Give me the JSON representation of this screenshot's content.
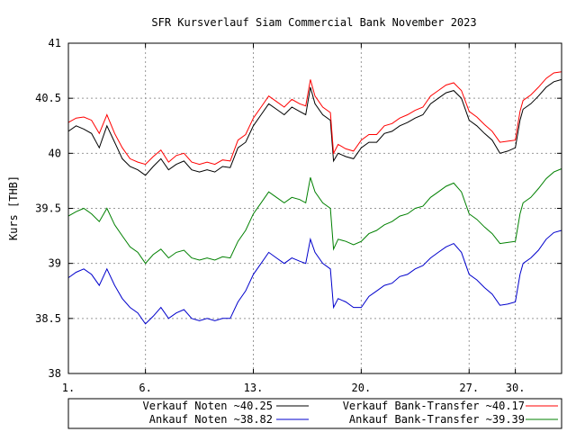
{
  "chart_data": {
    "type": "line",
    "title": "SFR Kursverlauf Siam Commercial Bank November 2023",
    "xlabel": "",
    "ylabel": "Kurs [THB]",
    "xlim": [
      1,
      33
    ],
    "ylim": [
      38,
      41
    ],
    "x_tick_labels": [
      "1.",
      "6.",
      "13.",
      "20.",
      "27.",
      "30."
    ],
    "x_tick_values": [
      1,
      6,
      13,
      20,
      27,
      30
    ],
    "y_tick_labels": [
      "38",
      "38.5",
      "39",
      "39.5",
      "40",
      "40.5",
      "41"
    ],
    "y_tick_values": [
      38,
      38.5,
      39,
      39.5,
      40,
      40.5,
      41
    ],
    "grid": true,
    "legend_position": "bottom",
    "series": [
      {
        "name": "Verkauf Noten",
        "legend_label": "Verkauf Noten ~40.25",
        "color": "#000000",
        "x": [
          1.0,
          1.5,
          2.0,
          2.5,
          3.0,
          3.5,
          4.0,
          4.5,
          5.0,
          5.5,
          6.0,
          6.5,
          7.0,
          7.5,
          8.0,
          8.5,
          9.0,
          9.5,
          10.0,
          10.5,
          11.0,
          11.5,
          12.0,
          12.5,
          13.0,
          13.5,
          14.0,
          14.5,
          15.0,
          15.5,
          16.0,
          16.4,
          16.7,
          17.0,
          17.5,
          18.0,
          18.2,
          18.5,
          19.0,
          19.5,
          20.0,
          20.5,
          21.0,
          21.5,
          22.0,
          22.5,
          23.0,
          23.5,
          24.0,
          24.5,
          25.0,
          25.5,
          26.0,
          26.5,
          27.0,
          27.5,
          28.0,
          28.5,
          29.0,
          29.5,
          30.0,
          30.3,
          30.5,
          31.0,
          31.5,
          32.0,
          32.5,
          33.0
        ],
        "y": [
          40.2,
          40.25,
          40.22,
          40.18,
          40.05,
          40.25,
          40.1,
          39.95,
          39.88,
          39.85,
          39.8,
          39.88,
          39.95,
          39.85,
          39.9,
          39.93,
          39.85,
          39.83,
          39.85,
          39.83,
          39.88,
          39.87,
          40.05,
          40.1,
          40.25,
          40.35,
          40.45,
          40.4,
          40.35,
          40.42,
          40.38,
          40.35,
          40.6,
          40.45,
          40.35,
          40.3,
          39.93,
          40.0,
          39.97,
          39.95,
          40.05,
          40.1,
          40.1,
          40.18,
          40.2,
          40.25,
          40.28,
          40.32,
          40.35,
          40.45,
          40.5,
          40.55,
          40.57,
          40.5,
          40.3,
          40.25,
          40.18,
          40.12,
          40.0,
          40.02,
          40.05,
          40.3,
          40.4,
          40.45,
          40.52,
          40.6,
          40.65,
          40.67
        ]
      },
      {
        "name": "Verkauf Bank-Transfer",
        "legend_label": "Verkauf Bank-Transfer ~40.17",
        "color": "#ff0000",
        "x": [
          1.0,
          1.5,
          2.0,
          2.5,
          3.0,
          3.5,
          4.0,
          4.5,
          5.0,
          5.5,
          6.0,
          6.5,
          7.0,
          7.5,
          8.0,
          8.5,
          9.0,
          9.5,
          10.0,
          10.5,
          11.0,
          11.5,
          12.0,
          12.5,
          13.0,
          13.5,
          14.0,
          14.5,
          15.0,
          15.5,
          16.0,
          16.4,
          16.7,
          17.0,
          17.5,
          18.0,
          18.2,
          18.5,
          19.0,
          19.5,
          20.0,
          20.5,
          21.0,
          21.5,
          22.0,
          22.5,
          23.0,
          23.5,
          24.0,
          24.5,
          25.0,
          25.5,
          26.0,
          26.5,
          27.0,
          27.5,
          28.0,
          28.5,
          29.0,
          29.5,
          30.0,
          30.3,
          30.5,
          31.0,
          31.5,
          32.0,
          32.5,
          33.0
        ],
        "y": [
          40.28,
          40.32,
          40.33,
          40.3,
          40.18,
          40.35,
          40.18,
          40.05,
          39.95,
          39.92,
          39.9,
          39.97,
          40.03,
          39.92,
          39.98,
          40.0,
          39.92,
          39.9,
          39.92,
          39.9,
          39.94,
          39.93,
          40.12,
          40.17,
          40.32,
          40.42,
          40.52,
          40.47,
          40.42,
          40.49,
          40.45,
          40.43,
          40.67,
          40.52,
          40.42,
          40.37,
          40.0,
          40.08,
          40.04,
          40.02,
          40.12,
          40.17,
          40.17,
          40.25,
          40.27,
          40.32,
          40.35,
          40.39,
          40.42,
          40.52,
          40.57,
          40.62,
          40.64,
          40.57,
          40.38,
          40.33,
          40.26,
          40.2,
          40.1,
          40.11,
          40.12,
          40.38,
          40.48,
          40.53,
          40.6,
          40.68,
          40.73,
          40.74
        ]
      },
      {
        "name": "Ankauf Noten",
        "legend_label": "Ankauf  Noten ~38.82",
        "color": "#0000cc",
        "x": [
          1.0,
          1.5,
          2.0,
          2.5,
          3.0,
          3.5,
          4.0,
          4.5,
          5.0,
          5.5,
          6.0,
          6.5,
          7.0,
          7.5,
          8.0,
          8.5,
          9.0,
          9.5,
          10.0,
          10.5,
          11.0,
          11.5,
          12.0,
          12.5,
          13.0,
          13.5,
          14.0,
          14.5,
          15.0,
          15.5,
          16.0,
          16.4,
          16.7,
          17.0,
          17.5,
          18.0,
          18.2,
          18.5,
          19.0,
          19.5,
          20.0,
          20.5,
          21.0,
          21.5,
          22.0,
          22.5,
          23.0,
          23.5,
          24.0,
          24.5,
          25.0,
          25.5,
          26.0,
          26.5,
          27.0,
          27.5,
          28.0,
          28.5,
          29.0,
          29.5,
          30.0,
          30.3,
          30.5,
          31.0,
          31.5,
          32.0,
          32.5,
          33.0
        ],
        "y": [
          38.87,
          38.92,
          38.95,
          38.9,
          38.8,
          38.95,
          38.8,
          38.68,
          38.6,
          38.55,
          38.45,
          38.52,
          38.6,
          38.5,
          38.55,
          38.58,
          38.5,
          38.48,
          38.5,
          38.48,
          38.5,
          38.5,
          38.65,
          38.75,
          38.9,
          39.0,
          39.1,
          39.05,
          39.0,
          39.05,
          39.02,
          39.0,
          39.22,
          39.1,
          39.0,
          38.95,
          38.6,
          38.68,
          38.65,
          38.6,
          38.6,
          38.7,
          38.75,
          38.8,
          38.82,
          38.88,
          38.9,
          38.95,
          38.98,
          39.05,
          39.1,
          39.15,
          39.18,
          39.1,
          38.9,
          38.85,
          38.78,
          38.72,
          38.62,
          38.63,
          38.65,
          38.9,
          39.0,
          39.05,
          39.12,
          39.22,
          39.28,
          39.3
        ]
      },
      {
        "name": "Ankauf Bank-Transfer",
        "legend_label": "Ankauf  Bank-Transfer ~39.39",
        "color": "#008000",
        "x": [
          1.0,
          1.5,
          2.0,
          2.5,
          3.0,
          3.5,
          4.0,
          4.5,
          5.0,
          5.5,
          6.0,
          6.5,
          7.0,
          7.5,
          8.0,
          8.5,
          9.0,
          9.5,
          10.0,
          10.5,
          11.0,
          11.5,
          12.0,
          12.5,
          13.0,
          13.5,
          14.0,
          14.5,
          15.0,
          15.5,
          16.0,
          16.4,
          16.7,
          17.0,
          17.5,
          18.0,
          18.2,
          18.5,
          19.0,
          19.5,
          20.0,
          20.5,
          21.0,
          21.5,
          22.0,
          22.5,
          23.0,
          23.5,
          24.0,
          24.5,
          25.0,
          25.5,
          26.0,
          26.5,
          27.0,
          27.5,
          28.0,
          28.5,
          29.0,
          29.5,
          30.0,
          30.3,
          30.5,
          31.0,
          31.5,
          32.0,
          32.5,
          33.0
        ],
        "y": [
          39.43,
          39.47,
          39.5,
          39.45,
          39.38,
          39.5,
          39.35,
          39.25,
          39.15,
          39.1,
          39.0,
          39.08,
          39.13,
          39.05,
          39.1,
          39.12,
          39.05,
          39.03,
          39.05,
          39.03,
          39.06,
          39.05,
          39.2,
          39.3,
          39.45,
          39.55,
          39.65,
          39.6,
          39.55,
          39.6,
          39.58,
          39.55,
          39.78,
          39.65,
          39.55,
          39.5,
          39.13,
          39.22,
          39.2,
          39.17,
          39.2,
          39.27,
          39.3,
          39.35,
          39.38,
          39.43,
          39.45,
          39.5,
          39.52,
          39.6,
          39.65,
          39.7,
          39.73,
          39.65,
          39.45,
          39.4,
          39.33,
          39.27,
          39.18,
          39.19,
          39.2,
          39.45,
          39.55,
          39.6,
          39.68,
          39.77,
          39.83,
          39.86
        ]
      }
    ]
  }
}
